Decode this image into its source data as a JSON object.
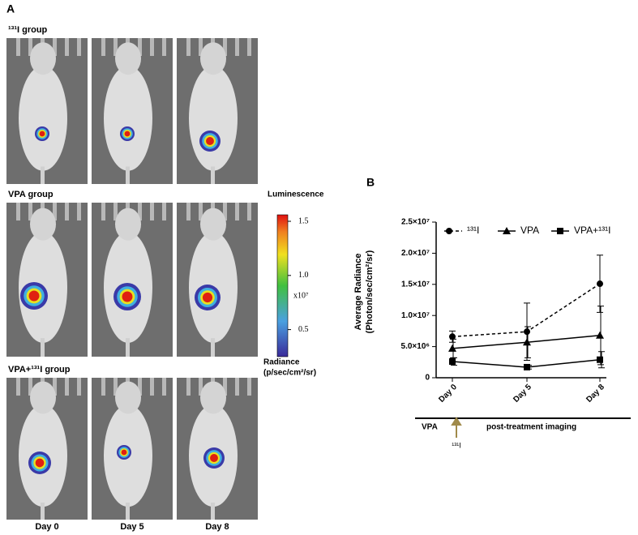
{
  "panel_a": {
    "label": "A",
    "groups": [
      "¹³¹I group",
      "VPA group",
      "VPA+¹³¹I group"
    ],
    "days": [
      "Day 0",
      "Day 5",
      "Day 8"
    ],
    "colorbar": {
      "title": "Luminescence",
      "lim": [
        0.25,
        1.56
      ],
      "ticks": [
        {
          "value": 1.5,
          "label": "1.5"
        },
        {
          "value": 1,
          "label": "1.0"
        },
        {
          "value": 0.5,
          "label": "0.5"
        }
      ],
      "multiplier": "x10⁷",
      "unit_title": "Radiance",
      "unit": "(p/sec/cm²/sr)"
    }
  },
  "chart_data": {
    "type": "line",
    "panel_label": "B",
    "ylabel": [
      "Average Radiance",
      "(Photon/sec/cm²/sr)"
    ],
    "categories": [
      "Day 0",
      "Day 5",
      "Day 8"
    ],
    "ylim": [
      0,
      25000000
    ],
    "yticks": [
      0,
      {
        "value": 5000000,
        "label": "5.0×10⁶"
      },
      {
        "value": 10000000,
        "label": "1.0×10⁷"
      },
      {
        "value": 15000000,
        "label": "1.5×10⁷"
      },
      {
        "value": 20000000,
        "label": "2.0×10⁷"
      },
      {
        "value": 25000000,
        "label": "2.5×10⁷"
      }
    ],
    "series": [
      {
        "name": "¹³¹I",
        "color": "#000000",
        "marker": "circle",
        "dashed": true,
        "values": [
          6600000,
          7400000,
          15100000
        ],
        "errors": [
          900000,
          4600000,
          4600000
        ]
      },
      {
        "name": "VPA",
        "color": "#000000",
        "marker": "triangle",
        "dashed": false,
        "values": [
          4700000,
          5700000,
          6800000
        ],
        "errors": [
          1500000,
          2500000,
          4700000
        ]
      },
      {
        "name": "VPA+¹³¹I",
        "color": "#000000",
        "marker": "square",
        "dashed": false,
        "values": [
          2600000,
          1700000,
          2900000
        ],
        "errors": [
          600000,
          300000,
          1300000
        ]
      }
    ],
    "timeline": {
      "start": "VPA",
      "arrow": "¹³¹I",
      "after": "post-treatment imaging"
    }
  }
}
